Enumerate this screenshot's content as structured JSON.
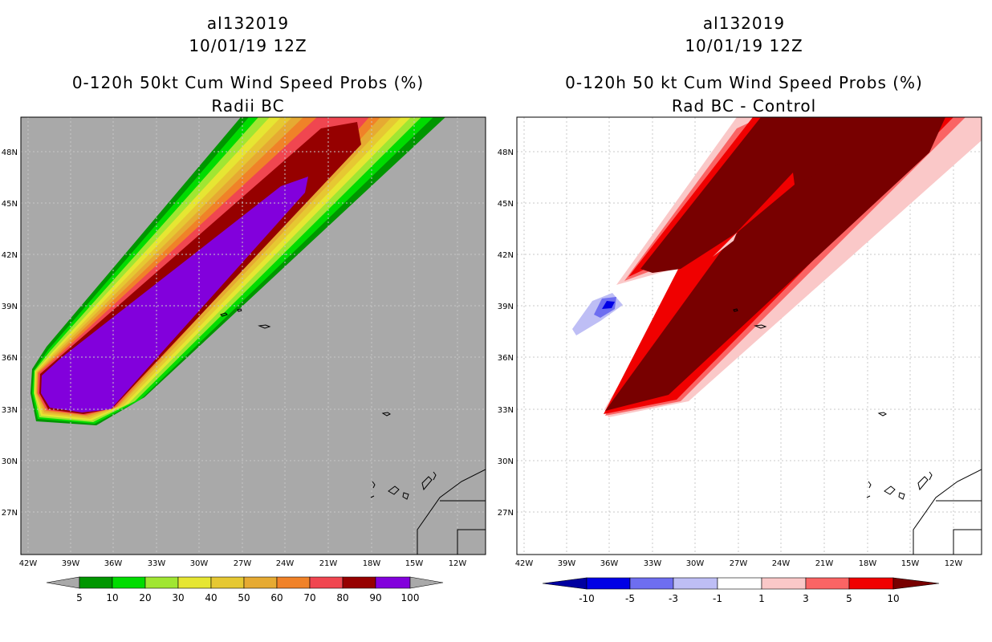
{
  "left": {
    "title_storm": "al132019",
    "title_date": "10/01/19 12Z",
    "title_product": "0-120h 50kt Cum Wind Speed Probs (%)",
    "title_sub": "Radii BC",
    "lat_labels": [
      "48N",
      "45N",
      "42N",
      "39N",
      "36N",
      "33N",
      "30N",
      "27N"
    ],
    "lon_labels": [
      "42W",
      "39W",
      "36W",
      "33W",
      "30W",
      "27W",
      "24W",
      "21W",
      "18W",
      "15W",
      "12W"
    ],
    "colorbar": {
      "labels": [
        "5",
        "10",
        "20",
        "30",
        "40",
        "50",
        "60",
        "70",
        "80",
        "90",
        "100"
      ],
      "colors": [
        "#009600",
        "#00dc00",
        "#a0e632",
        "#e6e632",
        "#e6c832",
        "#e6aa32",
        "#f08228",
        "#f04650",
        "#960000",
        "#8200dc"
      ]
    },
    "colors": {
      "background": "#a9a9a9",
      "g1": "#009600",
      "g2": "#00dc00",
      "g3": "#a0e632",
      "y1": "#e6e632",
      "y2": "#e6c832",
      "o1": "#e6aa32",
      "o2": "#f08228",
      "r1": "#f04650",
      "dr": "#960000",
      "pu": "#8200dc"
    }
  },
  "right": {
    "title_storm": "al132019",
    "title_date": "10/01/19 12Z",
    "title_product": "0-120h 50 kt Cum Wind Speed Probs (%)",
    "title_sub": "Rad BC - Control",
    "lat_labels": [
      "48N",
      "45N",
      "42N",
      "39N",
      "36N",
      "33N",
      "30N",
      "27N"
    ],
    "lon_labels": [
      "42W",
      "39W",
      "36W",
      "33W",
      "30W",
      "27W",
      "24W",
      "21W",
      "18W",
      "15W",
      "12W"
    ],
    "colorbar": {
      "labels": [
        "-10",
        "-5",
        "-3",
        "-1",
        "1",
        "3",
        "5",
        "10"
      ],
      "colors": [
        "#0000a0",
        "#0000e6",
        "#6e6ef0",
        "#bebef5",
        "#ffffff",
        "#fac8c8",
        "#fa6464",
        "#f00000",
        "#780000"
      ]
    },
    "colors": {
      "pk": "#fac8c8",
      "rd": "#fa6464",
      "r2": "#f00000",
      "dr": "#780000",
      "b1": "#bebef5",
      "b2": "#6e6ef0",
      "b3": "#0000e6"
    }
  }
}
